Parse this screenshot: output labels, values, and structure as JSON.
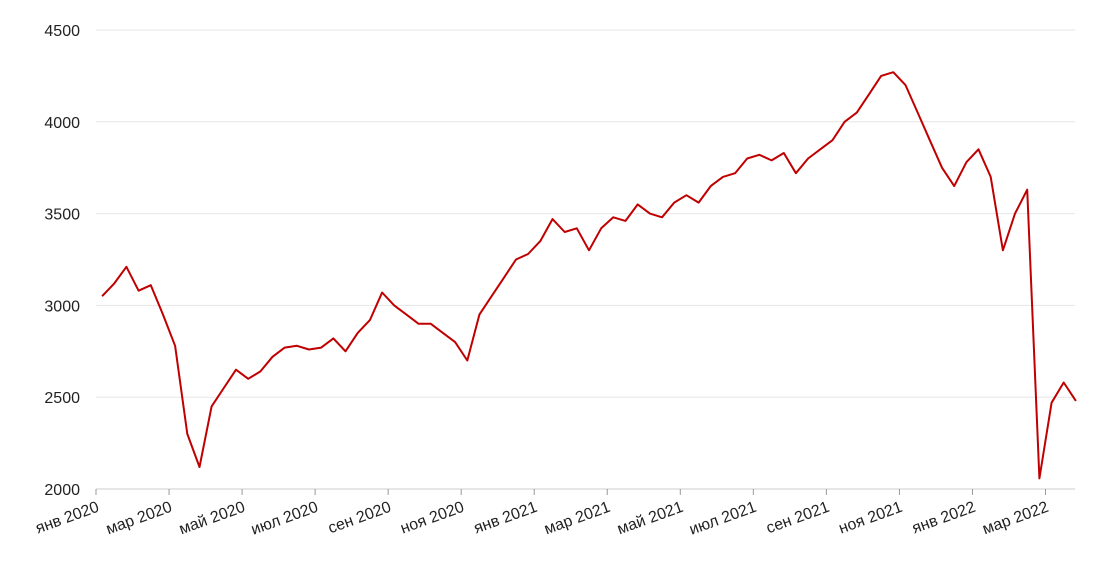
{
  "chart_data": {
    "type": "line",
    "x": [
      "2020-01",
      "2020-01",
      "2020-01",
      "2020-02",
      "2020-02",
      "2020-02",
      "2020-03",
      "2020-03",
      "2020-03",
      "2020-04",
      "2020-04",
      "2020-04",
      "2020-05",
      "2020-05",
      "2020-05",
      "2020-06",
      "2020-06",
      "2020-06",
      "2020-07",
      "2020-07",
      "2020-07",
      "2020-08",
      "2020-08",
      "2020-08",
      "2020-09",
      "2020-09",
      "2020-09",
      "2020-10",
      "2020-10",
      "2020-10",
      "2020-11",
      "2020-11",
      "2020-11",
      "2020-12",
      "2020-12",
      "2020-12",
      "2021-01",
      "2021-01",
      "2021-01",
      "2021-02",
      "2021-02",
      "2021-02",
      "2021-03",
      "2021-03",
      "2021-03",
      "2021-04",
      "2021-04",
      "2021-04",
      "2021-05",
      "2021-05",
      "2021-05",
      "2021-06",
      "2021-06",
      "2021-06",
      "2021-07",
      "2021-07",
      "2021-07",
      "2021-08",
      "2021-08",
      "2021-08",
      "2021-09",
      "2021-09",
      "2021-09",
      "2021-10",
      "2021-10",
      "2021-10",
      "2021-11",
      "2021-11",
      "2021-11",
      "2021-12",
      "2021-12",
      "2021-12",
      "2022-01",
      "2022-01",
      "2022-01",
      "2022-02",
      "2022-02",
      "2022-02",
      "2022-03",
      "2022-03",
      "2022-03"
    ],
    "series": [
      {
        "color": "#c00000",
        "values": [
          3050,
          3120,
          3210,
          3080,
          3110,
          2950,
          2780,
          2300,
          2120,
          2450,
          2550,
          2650,
          2600,
          2640,
          2720,
          2770,
          2780,
          2760,
          2770,
          2820,
          2750,
          2850,
          2920,
          3070,
          3000,
          2950,
          2900,
          2900,
          2850,
          2800,
          2700,
          2950,
          3050,
          3150,
          3250,
          3280,
          3350,
          3470,
          3400,
          3420,
          3300,
          3420,
          3480,
          3460,
          3550,
          3500,
          3480,
          3560,
          3600,
          3560,
          3650,
          3700,
          3720,
          3800,
          3820,
          3790,
          3830,
          3720,
          3800,
          3850,
          3900,
          4000,
          4050,
          4150,
          4250,
          4270,
          4200,
          4050,
          3900,
          3750,
          3650,
          3780,
          3850,
          3700,
          3300,
          3500,
          3630,
          2058,
          2470,
          2580,
          2480
        ]
      }
    ],
    "xlim": [
      "2020-01",
      "2022-03"
    ],
    "xticks": [
      {
        "value": "2020-01",
        "label": "янв 2020"
      },
      {
        "value": "2020-03",
        "label": "мар 2020"
      },
      {
        "value": "2020-05",
        "label": "май 2020"
      },
      {
        "value": "2020-07",
        "label": "июл 2020"
      },
      {
        "value": "2020-09",
        "label": "сен 2020"
      },
      {
        "value": "2020-11",
        "label": "ноя 2020"
      },
      {
        "value": "2021-01",
        "label": "янв 2021"
      },
      {
        "value": "2021-03",
        "label": "мар 2021"
      },
      {
        "value": "2021-05",
        "label": "май 2021"
      },
      {
        "value": "2021-07",
        "label": "июл 2021"
      },
      {
        "value": "2021-09",
        "label": "сен 2021"
      },
      {
        "value": "2021-11",
        "label": "ноя 2021"
      },
      {
        "value": "2022-01",
        "label": "янв 2022"
      },
      {
        "value": "2022-03",
        "label": "мар 2022"
      }
    ],
    "ylim": [
      2000,
      4500
    ],
    "yticks": [
      2000,
      2500,
      3000,
      3500,
      4000,
      4500
    ],
    "grid": true
  }
}
